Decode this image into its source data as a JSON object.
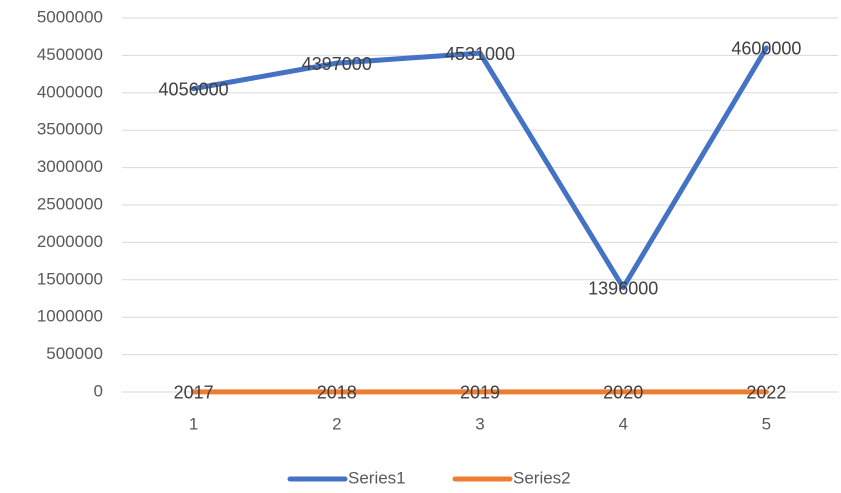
{
  "chart_data": {
    "type": "line",
    "categories": [
      "1",
      "2",
      "3",
      "4",
      "5"
    ],
    "series": [
      {
        "name": "Series1",
        "color": "#4472c4",
        "values": [
          4056000,
          4397000,
          4531000,
          1396000,
          4600000
        ]
      },
      {
        "name": "Series2",
        "color": "#ed7d31",
        "values": [
          2017,
          2018,
          2019,
          2020,
          2022
        ]
      }
    ],
    "ylim": [
      0,
      5000000
    ],
    "yticks": [
      0,
      500000,
      1000000,
      1500000,
      2000000,
      2500000,
      3000000,
      3500000,
      4000000,
      4500000,
      5000000
    ],
    "grid": true,
    "legend": "bottom",
    "data_labels": true
  }
}
